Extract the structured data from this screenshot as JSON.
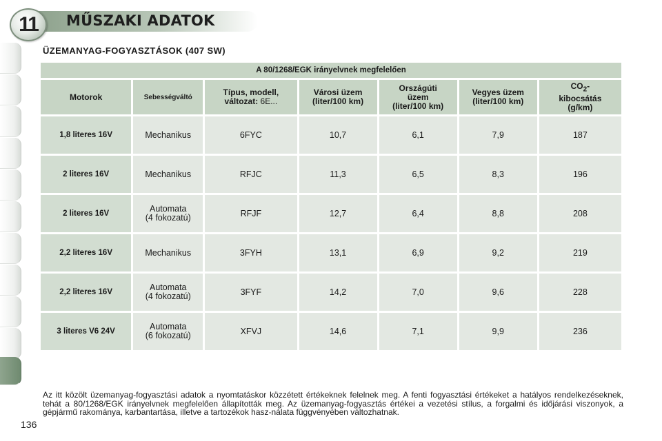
{
  "header": {
    "chapter_number": "11",
    "title": "MŰSZAKI ADATOK"
  },
  "section": {
    "title": "ÜZEMANYAG-FOGYASZTÁSOK (407 SW)"
  },
  "table": {
    "standard": "A 80/1268/EGK irányelvnek megfelelően",
    "columns": {
      "engine": "Motorok",
      "gearbox": "Sebességváltó",
      "type_bold": "Típus, modell, változat:",
      "type_rest": " 6E...",
      "urban_1": "Városi üzem",
      "urban_2": "(liter/100 km)",
      "extra_1": "Országúti",
      "extra_2": "üzem",
      "extra_3": "(liter/100 km)",
      "combined_1": "Vegyes üzem",
      "combined_2": "(liter/100 km)",
      "co2_a": "CO",
      "co2_sub": "2",
      "co2_b": "-",
      "co2_2": "kibocsátás",
      "co2_3": "(g/km)"
    },
    "rows": [
      {
        "engine": "1,8 literes 16V",
        "gearbox_1": "Mechanikus",
        "gearbox_2": "",
        "type": "6FYC",
        "urban": "10,7",
        "extra": "6,1",
        "combined": "7,9",
        "co2": "187"
      },
      {
        "engine": "2 literes 16V",
        "gearbox_1": "Mechanikus",
        "gearbox_2": "",
        "type": "RFJC",
        "urban": "11,3",
        "extra": "6,5",
        "combined": "8,3",
        "co2": "196"
      },
      {
        "engine": "2 literes 16V",
        "gearbox_1": "Automata",
        "gearbox_2": "(4 fokozatú)",
        "type": "RFJF",
        "urban": "12,7",
        "extra": "6,4",
        "combined": "8,8",
        "co2": "208"
      },
      {
        "engine": "2,2 literes 16V",
        "gearbox_1": "Mechanikus",
        "gearbox_2": "",
        "type": "3FYH",
        "urban": "13,1",
        "extra": "6,9",
        "combined": "9,2",
        "co2": "219"
      },
      {
        "engine": "2,2 literes 16V",
        "gearbox_1": "Automata",
        "gearbox_2": "(4 fokozatú)",
        "type": "3FYF",
        "urban": "14,2",
        "extra": "7,0",
        "combined": "9,6",
        "co2": "228"
      },
      {
        "engine": "3 literes V6 24V",
        "gearbox_1": "Automata",
        "gearbox_2": "(6 fokozatú)",
        "type": "XFVJ",
        "urban": "14,6",
        "extra": "7,1",
        "combined": "9,9",
        "co2": "236"
      }
    ]
  },
  "footnote": "Az itt közölt üzemanyag-fogyasztási adatok a nyomtatáskor közzétett értékeknek felelnek meg. A fenti fogyasztási értékeket a hatályos rendelkezéseknek, tehát a 80/1268/EGK irányelvnek megfelelően állapították meg. Az üzemanyag-fogyasztás értékei a vezetési stílus, a forgalmi és időjárási viszonyok, a gépjármű rakománya, karbantartása, illetve a tartozékok hasz-nálata függvényében változhatnak.",
  "page_number": "136",
  "colors": {
    "header_green": "#8ea28d",
    "table_header": "#c7d5c5",
    "table_cell": "#e3e8e2",
    "active_tab": "#6f8a70"
  }
}
